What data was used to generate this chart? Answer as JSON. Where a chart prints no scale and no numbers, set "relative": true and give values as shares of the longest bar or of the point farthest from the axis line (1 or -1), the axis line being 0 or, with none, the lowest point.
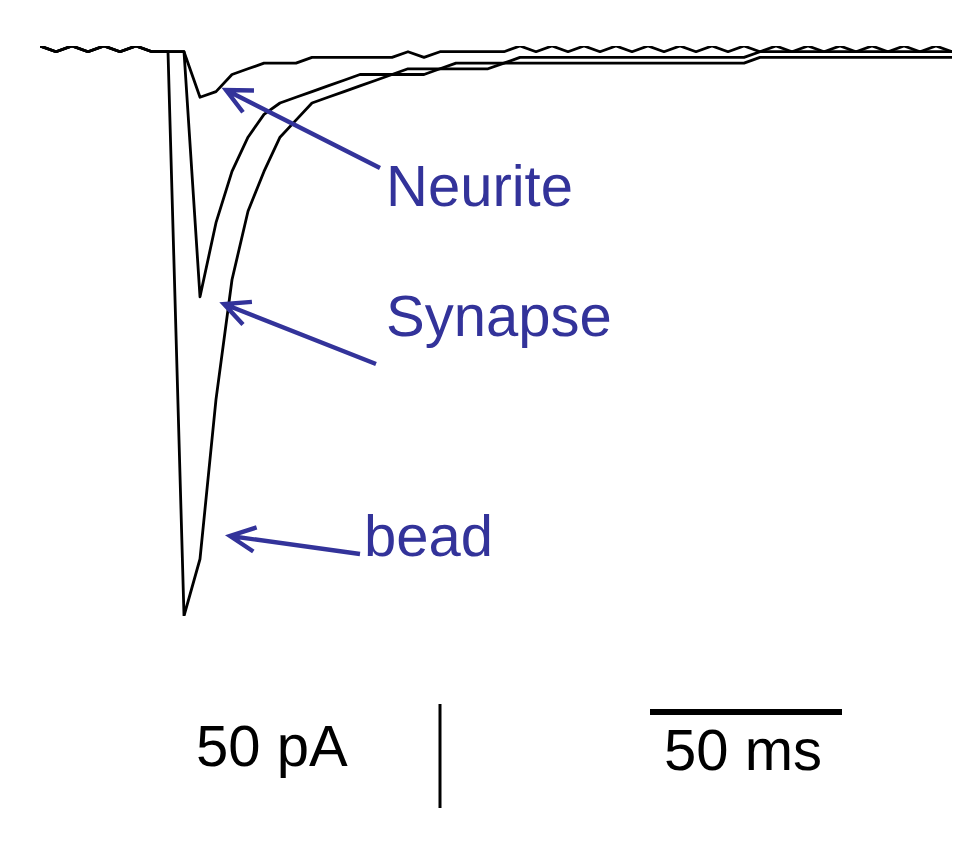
{
  "chart_data": {
    "type": "line",
    "relative": true,
    "categories": [
      null,
      null,
      null,
      null,
      null,
      null,
      null,
      null,
      null,
      null,
      null,
      null,
      null,
      null,
      null,
      null,
      null,
      null,
      null,
      null,
      null,
      null,
      null,
      null,
      null,
      null,
      null,
      null,
      null,
      null,
      null,
      null,
      null,
      null,
      null,
      null,
      null,
      null,
      null,
      null,
      null,
      null,
      null,
      null,
      null,
      null,
      null,
      null,
      null,
      null,
      null,
      null,
      null,
      null,
      null,
      null,
      null,
      null
    ],
    "series": [
      {
        "name": "Neurite",
        "color": "#000000",
        "values": [
          1,
          0.99,
          1,
          0.99,
          1,
          0.99,
          1,
          0.99,
          0.99,
          0.99,
          0.91,
          0.92,
          0.95,
          0.96,
          0.97,
          0.97,
          0.97,
          0.98,
          0.98,
          0.98,
          0.98,
          0.98,
          0.98,
          0.99,
          0.98,
          0.99,
          0.99,
          0.99,
          0.99,
          0.99,
          1,
          0.99,
          1,
          0.99,
          1,
          0.99,
          1,
          0.99,
          1,
          0.99,
          1,
          0.99,
          1,
          0.99,
          1,
          0.99,
          1,
          0.99,
          1,
          0.99,
          1,
          0.99,
          1,
          0.99,
          1,
          0.99,
          1,
          0.99
        ]
      },
      {
        "name": "Synapse",
        "color": "#000000",
        "values": [
          1,
          0.99,
          1,
          0.99,
          1,
          0.99,
          1,
          0.99,
          0.99,
          0.99,
          0.56,
          0.69,
          0.78,
          0.84,
          0.88,
          0.9,
          0.91,
          0.92,
          0.93,
          0.94,
          0.95,
          0.95,
          0.95,
          0.96,
          0.96,
          0.96,
          0.97,
          0.97,
          0.97,
          0.97,
          0.98,
          0.98,
          0.98,
          0.98,
          0.98,
          0.98,
          0.98,
          0.98,
          0.98,
          0.98,
          0.98,
          0.98,
          0.98,
          0.98,
          0.98,
          0.99,
          0.99,
          0.99,
          0.99,
          0.99,
          0.99,
          0.99,
          0.99,
          0.99,
          0.99,
          0.99,
          0.99,
          0.99
        ]
      },
      {
        "name": "bead",
        "color": "#000000",
        "values": [
          1,
          0.99,
          1,
          0.99,
          1,
          0.99,
          1,
          0.99,
          0.99,
          0,
          0.1,
          0.38,
          0.59,
          0.71,
          0.78,
          0.84,
          0.87,
          0.9,
          0.91,
          0.92,
          0.93,
          0.94,
          0.95,
          0.95,
          0.95,
          0.96,
          0.96,
          0.96,
          0.96,
          0.97,
          0.97,
          0.97,
          0.97,
          0.97,
          0.97,
          0.97,
          0.97,
          0.97,
          0.97,
          0.97,
          0.97,
          0.97,
          0.97,
          0.97,
          0.97,
          0.98,
          0.98,
          0.98,
          0.98,
          0.98,
          0.98,
          0.98,
          0.98,
          0.98,
          0.98,
          0.98,
          0.98,
          0.98
        ]
      }
    ],
    "annotations": [
      "50 pA",
      "50 ms"
    ]
  }
}
